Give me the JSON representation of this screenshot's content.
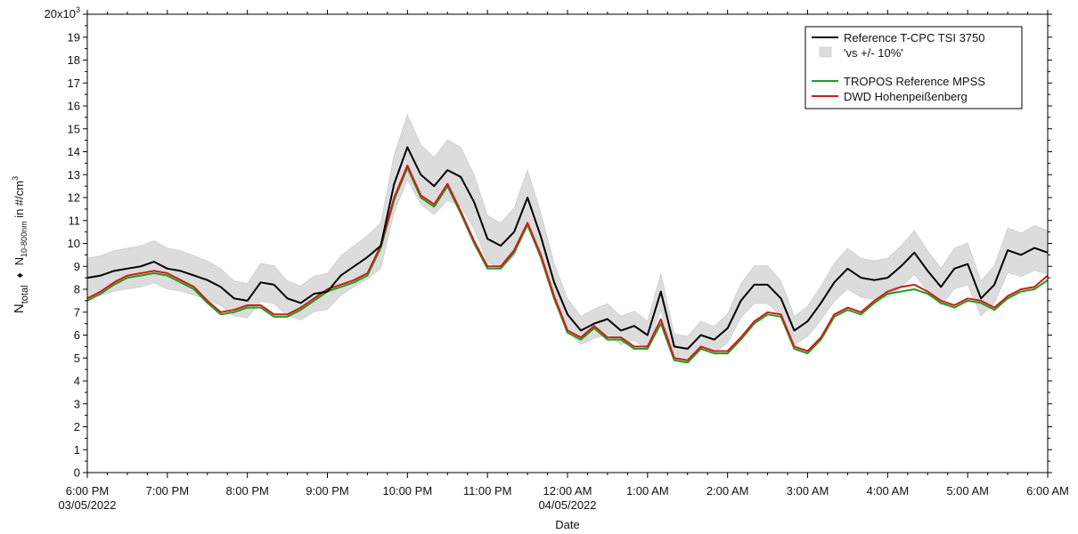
{
  "chart_data": {
    "type": "line",
    "xlabel": "Date",
    "ylabel": {
      "prefix": "N",
      "prefix_sub": "total",
      "separator": "♦",
      "main": "N",
      "main_sub": "10-800nm",
      "unit_text": " in #/cm",
      "unit_sup": "3"
    },
    "ylim": [
      0,
      20
    ],
    "y_top_label": {
      "text": "20x10",
      "sup": "3"
    },
    "yticks": [
      "0",
      "1",
      "2",
      "3",
      "4",
      "5",
      "6",
      "7",
      "8",
      "9",
      "10",
      "11",
      "12",
      "13",
      "14",
      "15",
      "16",
      "17",
      "18",
      "19"
    ],
    "xlim": [
      "2022-05-03 18:00",
      "2022-05-04 06:00"
    ],
    "x_ticks": [
      {
        "t": "2022-05-03 18:00",
        "label": "6:00 PM",
        "date": "03/05/2022"
      },
      {
        "t": "2022-05-03 19:00",
        "label": "7:00 PM",
        "date": ""
      },
      {
        "t": "2022-05-03 20:00",
        "label": "8:00 PM",
        "date": ""
      },
      {
        "t": "2022-05-03 21:00",
        "label": "9:00 PM",
        "date": ""
      },
      {
        "t": "2022-05-03 22:00",
        "label": "10:00 PM",
        "date": ""
      },
      {
        "t": "2022-05-03 23:00",
        "label": "11:00 PM",
        "date": ""
      },
      {
        "t": "2022-05-04 00:00",
        "label": "12:00 AM",
        "date": "04/05/2022"
      },
      {
        "t": "2022-05-04 01:00",
        "label": "1:00 AM",
        "date": ""
      },
      {
        "t": "2022-05-04 02:00",
        "label": "2:00 AM",
        "date": ""
      },
      {
        "t": "2022-05-04 03:00",
        "label": "3:00 AM",
        "date": ""
      },
      {
        "t": "2022-05-04 04:00",
        "label": "4:00 AM",
        "date": ""
      },
      {
        "t": "2022-05-04 05:00",
        "label": "5:00 AM",
        "date": ""
      },
      {
        "t": "2022-05-04 06:00",
        "label": "6:00 AM",
        "date": ""
      }
    ],
    "x": [
      "2022-05-03 18:00",
      "2022-05-03 18:10",
      "2022-05-03 18:20",
      "2022-05-03 18:30",
      "2022-05-03 18:40",
      "2022-05-03 18:50",
      "2022-05-03 19:00",
      "2022-05-03 19:10",
      "2022-05-03 19:20",
      "2022-05-03 19:30",
      "2022-05-03 19:40",
      "2022-05-03 19:50",
      "2022-05-03 20:00",
      "2022-05-03 20:10",
      "2022-05-03 20:20",
      "2022-05-03 20:30",
      "2022-05-03 20:40",
      "2022-05-03 20:50",
      "2022-05-03 21:00",
      "2022-05-03 21:10",
      "2022-05-03 21:20",
      "2022-05-03 21:30",
      "2022-05-03 21:40",
      "2022-05-03 21:50",
      "2022-05-03 22:00",
      "2022-05-03 22:10",
      "2022-05-03 22:20",
      "2022-05-03 22:30",
      "2022-05-03 22:40",
      "2022-05-03 22:50",
      "2022-05-03 23:00",
      "2022-05-03 23:10",
      "2022-05-03 23:20",
      "2022-05-03 23:30",
      "2022-05-03 23:40",
      "2022-05-03 23:50",
      "2022-05-04 00:00",
      "2022-05-04 00:10",
      "2022-05-04 00:20",
      "2022-05-04 00:30",
      "2022-05-04 00:40",
      "2022-05-04 00:50",
      "2022-05-04 01:00",
      "2022-05-04 01:10",
      "2022-05-04 01:20",
      "2022-05-04 01:30",
      "2022-05-04 01:40",
      "2022-05-04 01:50",
      "2022-05-04 02:00",
      "2022-05-04 02:10",
      "2022-05-04 02:20",
      "2022-05-04 02:30",
      "2022-05-04 02:40",
      "2022-05-04 02:50",
      "2022-05-04 03:00",
      "2022-05-04 03:10",
      "2022-05-04 03:20",
      "2022-05-04 03:30",
      "2022-05-04 03:40",
      "2022-05-04 03:50",
      "2022-05-04 04:00",
      "2022-05-04 04:10",
      "2022-05-04 04:20",
      "2022-05-04 04:30",
      "2022-05-04 04:40",
      "2022-05-04 04:50",
      "2022-05-04 05:00",
      "2022-05-04 05:10",
      "2022-05-04 05:20",
      "2022-05-04 05:30",
      "2022-05-04 05:40",
      "2022-05-04 05:50",
      "2022-05-04 06:00"
    ],
    "series": [
      {
        "name": "Reference T-CPC TSI 3750",
        "color": "#000000",
        "values": [
          8.5,
          8.6,
          8.8,
          8.9,
          9.0,
          9.2,
          8.9,
          8.8,
          8.6,
          8.4,
          8.1,
          7.6,
          7.5,
          8.3,
          8.2,
          7.6,
          7.4,
          7.8,
          7.9,
          8.6,
          9.0,
          9.4,
          9.9,
          12.6,
          14.2,
          13.0,
          12.5,
          13.2,
          12.9,
          11.8,
          10.2,
          9.9,
          10.5,
          12.0,
          10.3,
          8.3,
          6.9,
          6.2,
          6.5,
          6.7,
          6.2,
          6.4,
          6.0,
          7.9,
          5.5,
          5.4,
          6.0,
          5.8,
          6.3,
          7.5,
          8.2,
          8.2,
          7.6,
          6.2,
          6.6,
          7.4,
          8.3,
          8.9,
          8.5,
          8.4,
          8.5,
          9.0,
          9.6,
          8.8,
          8.1,
          8.9,
          9.1,
          7.6,
          8.2,
          9.7,
          9.5,
          9.8,
          9.6
        ]
      },
      {
        "name": "TROPOS Reference MPSS",
        "color": "#1e9e1e",
        "values": [
          7.5,
          7.8,
          8.2,
          8.5,
          8.6,
          8.7,
          8.6,
          8.3,
          8.0,
          7.4,
          6.9,
          7.0,
          7.2,
          7.2,
          6.8,
          6.8,
          7.1,
          7.5,
          7.9,
          8.1,
          8.3,
          8.6,
          9.8,
          11.9,
          13.3,
          12.0,
          11.6,
          12.5,
          11.3,
          10.0,
          8.9,
          8.9,
          9.6,
          10.8,
          9.4,
          7.6,
          6.1,
          5.8,
          6.3,
          5.8,
          5.8,
          5.4,
          5.4,
          6.5,
          4.9,
          4.8,
          5.4,
          5.2,
          5.2,
          5.8,
          6.5,
          6.9,
          6.8,
          5.4,
          5.2,
          5.8,
          6.8,
          7.1,
          6.9,
          7.4,
          7.8,
          7.9,
          8.0,
          7.8,
          7.4,
          7.2,
          7.5,
          7.4,
          7.1,
          7.6,
          7.9,
          8.0,
          8.4
        ]
      },
      {
        "name": "DWD Hohenpeißenberg",
        "color": "#d11a1a",
        "values": [
          7.6,
          7.9,
          8.3,
          8.6,
          8.7,
          8.8,
          8.7,
          8.4,
          8.1,
          7.5,
          7.0,
          7.1,
          7.3,
          7.3,
          6.9,
          6.9,
          7.2,
          7.6,
          8.0,
          8.2,
          8.4,
          8.7,
          9.9,
          12.0,
          13.4,
          12.1,
          11.7,
          12.6,
          11.4,
          10.1,
          9.0,
          9.0,
          9.7,
          10.9,
          9.5,
          7.7,
          6.2,
          5.9,
          6.4,
          5.9,
          5.9,
          5.5,
          5.5,
          6.7,
          5.0,
          4.9,
          5.5,
          5.3,
          5.3,
          5.9,
          6.6,
          7.0,
          6.9,
          5.5,
          5.3,
          5.9,
          6.9,
          7.2,
          7.0,
          7.5,
          7.9,
          8.1,
          8.2,
          7.9,
          7.5,
          7.3,
          7.6,
          7.5,
          7.2,
          7.7,
          8.0,
          8.1,
          8.6
        ]
      }
    ],
    "band": {
      "name": "'vs +/- 10%'",
      "color": "#dcdcdc",
      "of_series": 0,
      "pct": 10
    },
    "legend_position": "top-right",
    "grid": false
  }
}
